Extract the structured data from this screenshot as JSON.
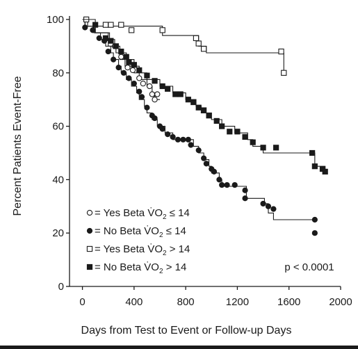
{
  "chart_data": {
    "type": "line",
    "title": "",
    "xlabel": "Days from Test to Event or Follow-up Days",
    "ylabel": "Percent Patients Event-Free",
    "xlim": [
      -100,
      2000
    ],
    "ylim": [
      0,
      100
    ],
    "x_ticks": [
      0,
      400,
      800,
      1200,
      1600,
      2000
    ],
    "x_tick_labels": [
      "0",
      "400",
      "800",
      "1200",
      "1600",
      "2000"
    ],
    "y_ticks": [
      0,
      20,
      40,
      60,
      80,
      100
    ],
    "y_tick_labels": [
      "0",
      "20",
      "40",
      "60",
      "80",
      "100"
    ],
    "annotation": "p < 0.0001",
    "legend_placement": "lower-left",
    "colors": {
      "ink": "#1a1a1a",
      "background": "#ffffff"
    },
    "series": [
      {
        "legend_prefix": "= Yes Beta ",
        "symbol": "V̇O",
        "subscript": "2",
        "condition": " ≤ 14",
        "marker": "open-circle",
        "steps": [
          [
            0,
            100
          ],
          [
            20,
            97.5
          ],
          [
            70,
            97.5
          ],
          [
            100,
            95
          ],
          [
            180,
            95
          ],
          [
            210,
            92.5
          ],
          [
            250,
            90
          ],
          [
            290,
            85
          ],
          [
            330,
            82.5
          ],
          [
            400,
            80
          ],
          [
            440,
            77.5
          ],
          [
            500,
            75
          ],
          [
            540,
            72.5
          ],
          [
            560,
            70
          ],
          [
            600,
            70
          ]
        ],
        "censor": [
          [
            250,
            90
          ],
          [
            300,
            86
          ],
          [
            350,
            82
          ],
          [
            390,
            81
          ],
          [
            440,
            78
          ],
          [
            470,
            76
          ],
          [
            520,
            75
          ],
          [
            540,
            72
          ],
          [
            560,
            70
          ],
          [
            580,
            72
          ]
        ]
      },
      {
        "legend_prefix": "= No Beta ",
        "symbol": "V̇O",
        "subscript": "2",
        "condition": " ≤ 14",
        "marker": "filled-circle",
        "steps": [
          [
            0,
            100
          ],
          [
            40,
            97.5
          ],
          [
            90,
            95
          ],
          [
            140,
            92.5
          ],
          [
            180,
            90
          ],
          [
            220,
            87.5
          ],
          [
            240,
            85
          ],
          [
            280,
            82.5
          ],
          [
            300,
            80
          ],
          [
            340,
            77.5
          ],
          [
            380,
            75
          ],
          [
            420,
            72.5
          ],
          [
            440,
            70
          ],
          [
            480,
            67.5
          ],
          [
            500,
            65
          ],
          [
            540,
            62.5
          ],
          [
            580,
            60
          ],
          [
            640,
            57.5
          ],
          [
            700,
            55
          ],
          [
            820,
            55
          ],
          [
            860,
            52.5
          ],
          [
            900,
            50
          ],
          [
            940,
            47.5
          ],
          [
            980,
            45
          ],
          [
            1000,
            42.5
          ],
          [
            1060,
            40
          ],
          [
            1080,
            37.5
          ],
          [
            1260,
            37.5
          ],
          [
            1270,
            33
          ],
          [
            1400,
            33
          ],
          [
            1410,
            31
          ],
          [
            1440,
            27.5
          ],
          [
            1480,
            25
          ],
          [
            1800,
            25
          ]
        ],
        "censor": [
          [
            20,
            97
          ],
          [
            80,
            96
          ],
          [
            130,
            93
          ],
          [
            170,
            92
          ],
          [
            200,
            88
          ],
          [
            240,
            85
          ],
          [
            280,
            82
          ],
          [
            320,
            80
          ],
          [
            360,
            78
          ],
          [
            400,
            76
          ],
          [
            440,
            73
          ],
          [
            460,
            71
          ],
          [
            500,
            67
          ],
          [
            540,
            64
          ],
          [
            560,
            63
          ],
          [
            600,
            60
          ],
          [
            620,
            59
          ],
          [
            660,
            57
          ],
          [
            700,
            56
          ],
          [
            740,
            55
          ],
          [
            780,
            55
          ],
          [
            820,
            55
          ],
          [
            840,
            53
          ],
          [
            900,
            51
          ],
          [
            940,
            48
          ],
          [
            960,
            46
          ],
          [
            1000,
            44
          ],
          [
            1020,
            43
          ],
          [
            1060,
            40
          ],
          [
            1080,
            38
          ],
          [
            1120,
            38
          ],
          [
            1180,
            38
          ],
          [
            1260,
            36
          ],
          [
            1260,
            33
          ],
          [
            1400,
            31
          ],
          [
            1440,
            30
          ],
          [
            1480,
            29
          ],
          [
            1800,
            25
          ],
          [
            1800,
            20
          ]
        ]
      },
      {
        "legend_prefix": "= Yes Beta ",
        "symbol": "V̇O",
        "subscript": "2",
        "condition": " > 14",
        "marker": "open-square",
        "steps": [
          [
            0,
            100
          ],
          [
            20,
            97.5
          ],
          [
            600,
            97.5
          ],
          [
            620,
            94
          ],
          [
            880,
            94
          ],
          [
            900,
            90
          ],
          [
            940,
            90
          ],
          [
            960,
            87.5
          ],
          [
            1540,
            87.5
          ],
          [
            1560,
            80
          ],
          [
            1580,
            80
          ]
        ],
        "censor": [
          [
            30,
            100
          ],
          [
            180,
            98
          ],
          [
            220,
            98
          ],
          [
            300,
            98
          ],
          [
            380,
            96
          ],
          [
            620,
            96
          ],
          [
            880,
            93
          ],
          [
            900,
            91
          ],
          [
            940,
            89
          ],
          [
            1540,
            88
          ],
          [
            1560,
            80
          ]
        ]
      },
      {
        "legend_prefix": "= No Beta ",
        "symbol": "V̇O",
        "subscript": "2",
        "condition": " > 14",
        "marker": "filled-square",
        "steps": [
          [
            0,
            100
          ],
          [
            100,
            95
          ],
          [
            200,
            90
          ],
          [
            260,
            87.5
          ],
          [
            340,
            85
          ],
          [
            400,
            82.5
          ],
          [
            440,
            80
          ],
          [
            500,
            77.5
          ],
          [
            600,
            75
          ],
          [
            700,
            72.5
          ],
          [
            800,
            70
          ],
          [
            880,
            67.5
          ],
          [
            920,
            65
          ],
          [
            1000,
            62.5
          ],
          [
            1080,
            60
          ],
          [
            1180,
            57.5
          ],
          [
            1280,
            55
          ],
          [
            1320,
            52.5
          ],
          [
            1400,
            50
          ],
          [
            1780,
            50
          ],
          [
            1800,
            45
          ],
          [
            1860,
            45
          ],
          [
            1880,
            42.5
          ]
        ],
        "censor": [
          [
            100,
            98
          ],
          [
            180,
            93
          ],
          [
            220,
            92
          ],
          [
            260,
            90
          ],
          [
            300,
            88
          ],
          [
            340,
            86
          ],
          [
            360,
            84
          ],
          [
            400,
            83
          ],
          [
            440,
            81
          ],
          [
            500,
            79
          ],
          [
            560,
            77
          ],
          [
            620,
            75
          ],
          [
            660,
            74
          ],
          [
            720,
            72
          ],
          [
            760,
            72
          ],
          [
            820,
            70
          ],
          [
            860,
            69
          ],
          [
            900,
            67
          ],
          [
            940,
            66
          ],
          [
            980,
            64
          ],
          [
            1040,
            62
          ],
          [
            1080,
            60
          ],
          [
            1140,
            58
          ],
          [
            1200,
            58
          ],
          [
            1260,
            56
          ],
          [
            1320,
            54
          ],
          [
            1400,
            52
          ],
          [
            1500,
            52
          ],
          [
            1780,
            50
          ],
          [
            1800,
            45
          ],
          [
            1860,
            44
          ],
          [
            1880,
            43
          ]
        ]
      }
    ]
  }
}
